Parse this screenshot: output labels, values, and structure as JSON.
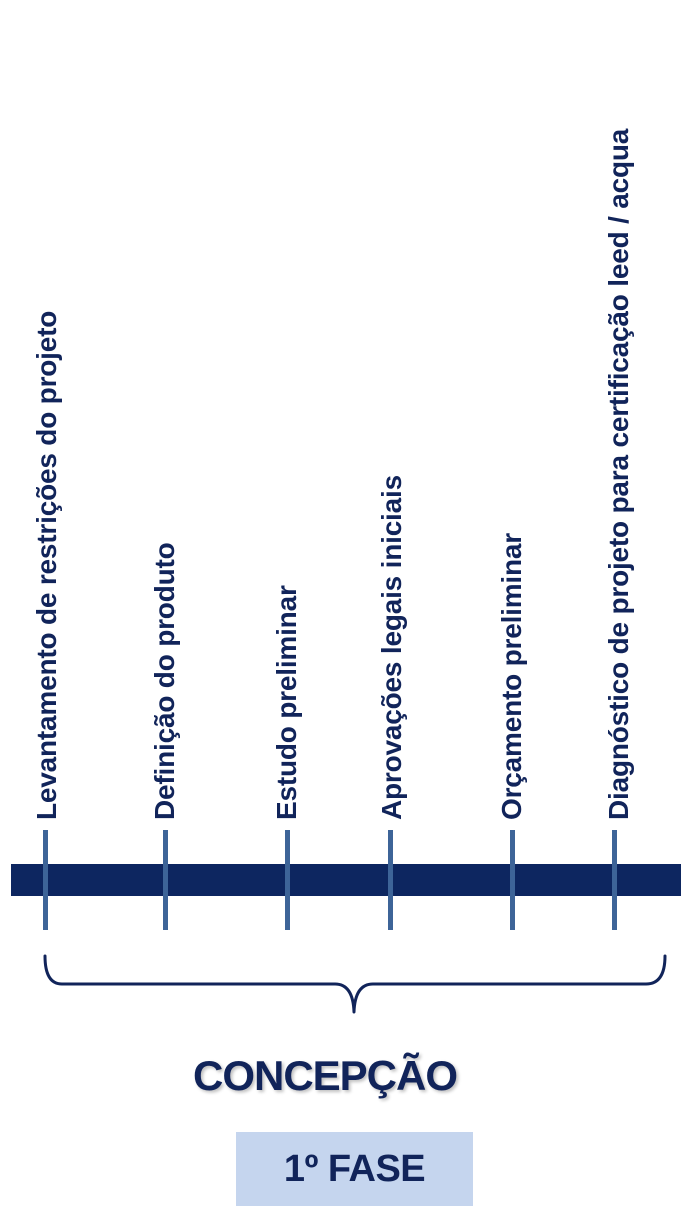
{
  "steps": [
    {
      "label": "Levantamento de restrições do projeto"
    },
    {
      "label": "Definição do produto"
    },
    {
      "label": "Estudo preliminar"
    },
    {
      "label": "Aprovações legais iniciais"
    },
    {
      "label": "Orçamento preliminar"
    },
    {
      "label": "Diagnóstico de projeto para certificação leed / acqua"
    }
  ],
  "phase": {
    "title": "CONCEPÇÃO",
    "badge": "1º FASE"
  },
  "colors": {
    "dark_navy": "#0d2660",
    "tick": "#3d6498",
    "text": "#11245a",
    "badge_bg": "#c5d5ee"
  }
}
